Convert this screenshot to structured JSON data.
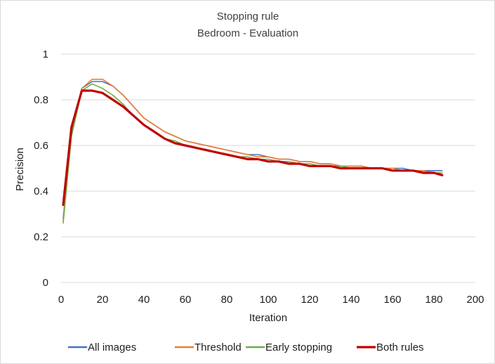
{
  "chart_data": {
    "type": "line",
    "title": "Stopping rule",
    "subtitle": "Bedroom - Evaluation",
    "xlabel": "Iteration",
    "ylabel": "Precision",
    "xlim": [
      0,
      200
    ],
    "ylim": [
      0,
      1
    ],
    "x_ticks": [
      0,
      20,
      40,
      60,
      80,
      100,
      120,
      140,
      160,
      180,
      200
    ],
    "y_ticks": [
      0,
      0.2,
      0.4,
      0.6,
      0.8,
      1
    ],
    "x_tick_labels": [
      "0",
      "20",
      "40",
      "60",
      "80",
      "100",
      "120",
      "140",
      "160",
      "180",
      "200"
    ],
    "y_tick_labels": [
      "0",
      "0.2",
      "0.4",
      "0.6",
      "0.8",
      "1"
    ],
    "grid": "horizontal",
    "legend_position": "bottom",
    "x": [
      1,
      5,
      10,
      15,
      20,
      25,
      30,
      35,
      40,
      45,
      50,
      55,
      60,
      65,
      70,
      75,
      80,
      85,
      90,
      95,
      100,
      105,
      110,
      115,
      120,
      125,
      130,
      135,
      140,
      145,
      150,
      155,
      160,
      165,
      170,
      175,
      180,
      184
    ],
    "series": [
      {
        "name": "All images",
        "color": "#4472c4",
        "values": [
          0.28,
          0.66,
          0.85,
          0.88,
          0.88,
          0.86,
          0.82,
          0.77,
          0.72,
          0.69,
          0.66,
          0.64,
          0.62,
          0.61,
          0.6,
          0.59,
          0.58,
          0.57,
          0.56,
          0.56,
          0.55,
          0.54,
          0.54,
          0.53,
          0.53,
          0.52,
          0.52,
          0.51,
          0.51,
          0.51,
          0.5,
          0.5,
          0.5,
          0.5,
          0.49,
          0.49,
          0.49,
          0.49
        ]
      },
      {
        "name": "Threshold",
        "color": "#ed7d31",
        "values": [
          0.27,
          0.67,
          0.85,
          0.89,
          0.89,
          0.86,
          0.82,
          0.77,
          0.72,
          0.69,
          0.66,
          0.64,
          0.62,
          0.61,
          0.6,
          0.59,
          0.58,
          0.57,
          0.56,
          0.55,
          0.55,
          0.54,
          0.54,
          0.53,
          0.53,
          0.52,
          0.52,
          0.51,
          0.51,
          0.51,
          0.5,
          0.5,
          0.5,
          0.49,
          0.49,
          0.49,
          0.48,
          0.48
        ]
      },
      {
        "name": "Early stopping",
        "color": "#70ad47",
        "values": [
          0.26,
          0.64,
          0.84,
          0.87,
          0.85,
          0.82,
          0.78,
          0.73,
          0.69,
          0.66,
          0.63,
          0.62,
          0.6,
          0.59,
          0.58,
          0.57,
          0.56,
          0.55,
          0.55,
          0.54,
          0.54,
          0.53,
          0.53,
          0.52,
          0.52,
          0.51,
          0.51,
          0.51,
          0.5,
          0.5,
          0.5,
          0.5,
          0.49,
          0.49,
          0.49,
          0.48,
          0.48,
          0.48
        ]
      },
      {
        "name": "Both rules",
        "color": "#c00000",
        "values": [
          0.34,
          0.68,
          0.84,
          0.84,
          0.83,
          0.8,
          0.77,
          0.73,
          0.69,
          0.66,
          0.63,
          0.61,
          0.6,
          0.59,
          0.58,
          0.57,
          0.56,
          0.55,
          0.54,
          0.54,
          0.53,
          0.53,
          0.52,
          0.52,
          0.51,
          0.51,
          0.51,
          0.5,
          0.5,
          0.5,
          0.5,
          0.5,
          0.49,
          0.49,
          0.49,
          0.48,
          0.48,
          0.47
        ]
      }
    ]
  }
}
